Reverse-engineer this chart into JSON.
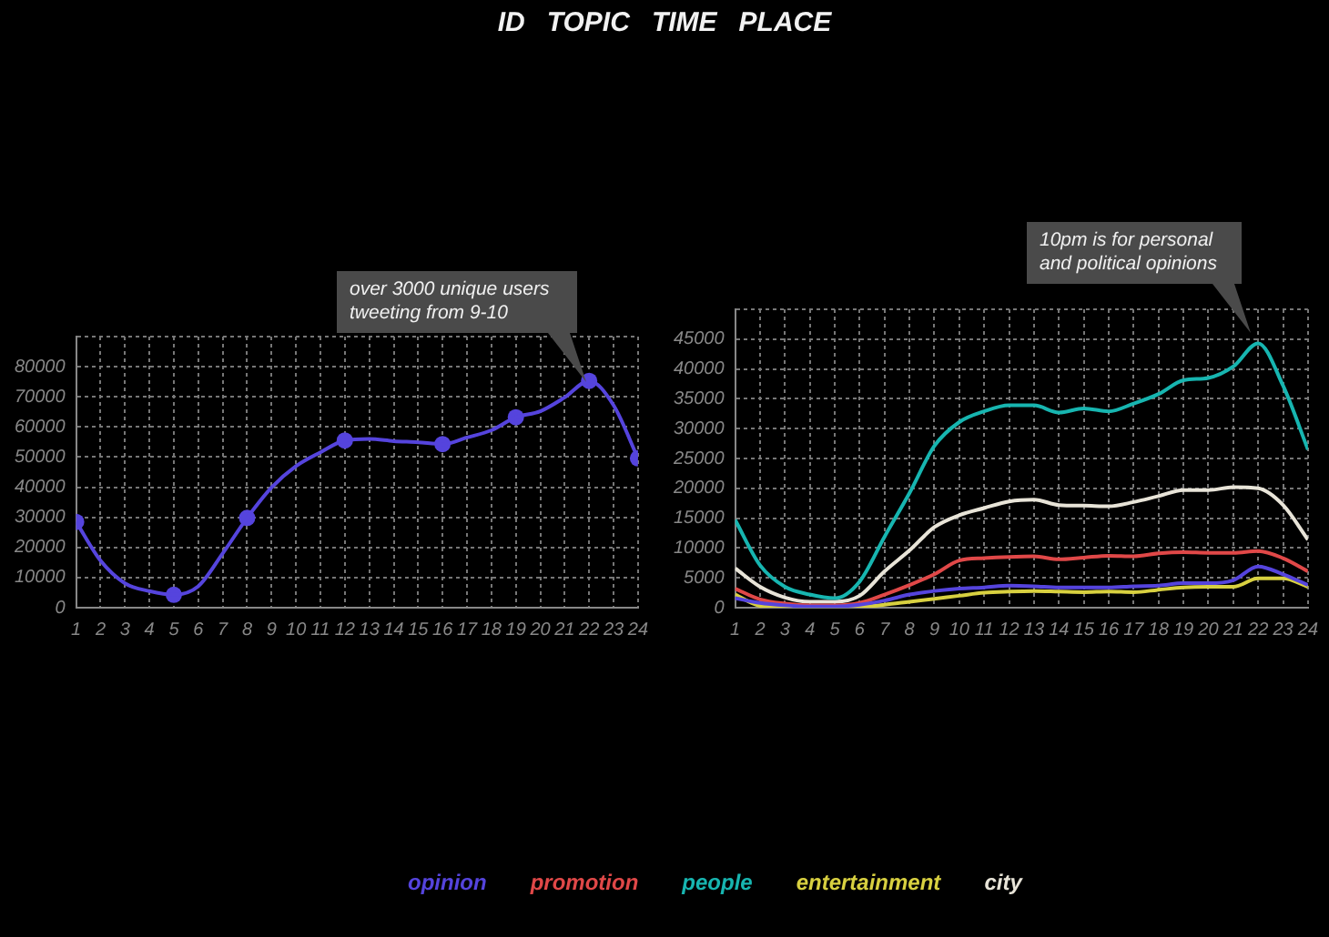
{
  "chart_data": [
    {
      "type": "other",
      "annotations": [
        "ID",
        "TOPIC",
        "TIME",
        "PLACE"
      ]
    },
    {
      "type": "line",
      "x": [
        1,
        2,
        3,
        4,
        5,
        6,
        7,
        8,
        9,
        10,
        11,
        12,
        13,
        14,
        15,
        16,
        17,
        18,
        19,
        20,
        21,
        22,
        23,
        24
      ],
      "xlim": [
        1,
        24
      ],
      "xticks": [
        1,
        2,
        3,
        4,
        5,
        6,
        7,
        8,
        9,
        10,
        11,
        12,
        13,
        14,
        15,
        16,
        17,
        18,
        19,
        20,
        21,
        22,
        23,
        24
      ],
      "ylim": [
        0,
        90000
      ],
      "yticks": [
        0,
        10000,
        20000,
        30000,
        40000,
        50000,
        60000,
        70000,
        80000,
        {
          "value": 90000,
          "label": null
        }
      ],
      "grid": true,
      "legend": false,
      "series": [
        {
          "color": "#5544dd",
          "marker": "none",
          "values": [
            28500,
            15600,
            8100,
            5500,
            4300,
            7100,
            18000,
            29800,
            39900,
            47000,
            51600,
            55500,
            56000,
            55300,
            54900,
            54300,
            56500,
            58900,
            63200,
            65200,
            69800,
            75300,
            67200,
            49600
          ]
        },
        {
          "type": "scatter",
          "color": "#5544dd",
          "marker": "circle",
          "x": [
            1,
            5,
            8,
            12,
            16,
            19,
            22,
            24
          ],
          "values": [
            28500,
            4300,
            29800,
            55500,
            54300,
            63200,
            75300,
            49600
          ]
        }
      ],
      "annotations": [
        "over 3000 unique users tweeting from 9-10"
      ]
    },
    {
      "type": "line",
      "x": [
        1,
        2,
        3,
        4,
        5,
        6,
        7,
        8,
        9,
        10,
        11,
        12,
        13,
        14,
        15,
        16,
        17,
        18,
        19,
        20,
        21,
        22,
        23,
        24
      ],
      "xlim": [
        1,
        24
      ],
      "xticks": [
        1,
        2,
        3,
        4,
        5,
        6,
        7,
        8,
        9,
        10,
        11,
        12,
        13,
        14,
        15,
        16,
        17,
        18,
        19,
        20,
        21,
        22,
        23,
        24
      ],
      "ylim": [
        0,
        50000
      ],
      "yticks": [
        0,
        5000,
        10000,
        15000,
        20000,
        25000,
        30000,
        35000,
        40000,
        45000,
        {
          "value": 50000,
          "label": null
        }
      ],
      "grid": true,
      "legend": "bottom",
      "marker": "none",
      "series": [
        {
          "name": "opinion",
          "color": "#5544dd",
          "values": [
            1600,
            800,
            400,
            200,
            200,
            500,
            1200,
            2200,
            2800,
            3200,
            3400,
            3700,
            3600,
            3400,
            3400,
            3400,
            3600,
            3700,
            4100,
            4100,
            4600,
            6900,
            5600,
            3800
          ]
        },
        {
          "name": "promotion",
          "color": "#e04848",
          "values": [
            3200,
            1400,
            700,
            400,
            400,
            800,
            2200,
            3800,
            5600,
            7900,
            8300,
            8500,
            8600,
            8100,
            8400,
            8700,
            8600,
            9100,
            9300,
            9200,
            9200,
            9500,
            8300,
            6100
          ]
        },
        {
          "name": "people",
          "color": "#17b5b0",
          "values": [
            14700,
            7100,
            3500,
            2200,
            1600,
            4400,
            11900,
            19200,
            27100,
            31100,
            32900,
            33900,
            33900,
            32700,
            33400,
            32900,
            34200,
            35800,
            38100,
            38500,
            40400,
            44300,
            37200,
            26500
          ]
        },
        {
          "name": "entertainment",
          "color": "#d8d040",
          "values": [
            2200,
            300,
            100,
            0,
            0,
            100,
            500,
            1000,
            1500,
            2000,
            2500,
            2700,
            2800,
            2700,
            2600,
            2700,
            2600,
            3000,
            3400,
            3500,
            3500,
            4900,
            4900,
            3500
          ]
        },
        {
          "name": "city",
          "color": "#e8e4d8",
          "values": [
            6600,
            3500,
            1700,
            1000,
            1000,
            2000,
            6100,
            9600,
            13500,
            15500,
            16700,
            17800,
            18100,
            17200,
            17100,
            17000,
            17700,
            18700,
            19700,
            19700,
            20200,
            20000,
            17200,
            11400
          ]
        }
      ],
      "annotations": [
        "10pm is for personal and political opinions"
      ]
    }
  ]
}
